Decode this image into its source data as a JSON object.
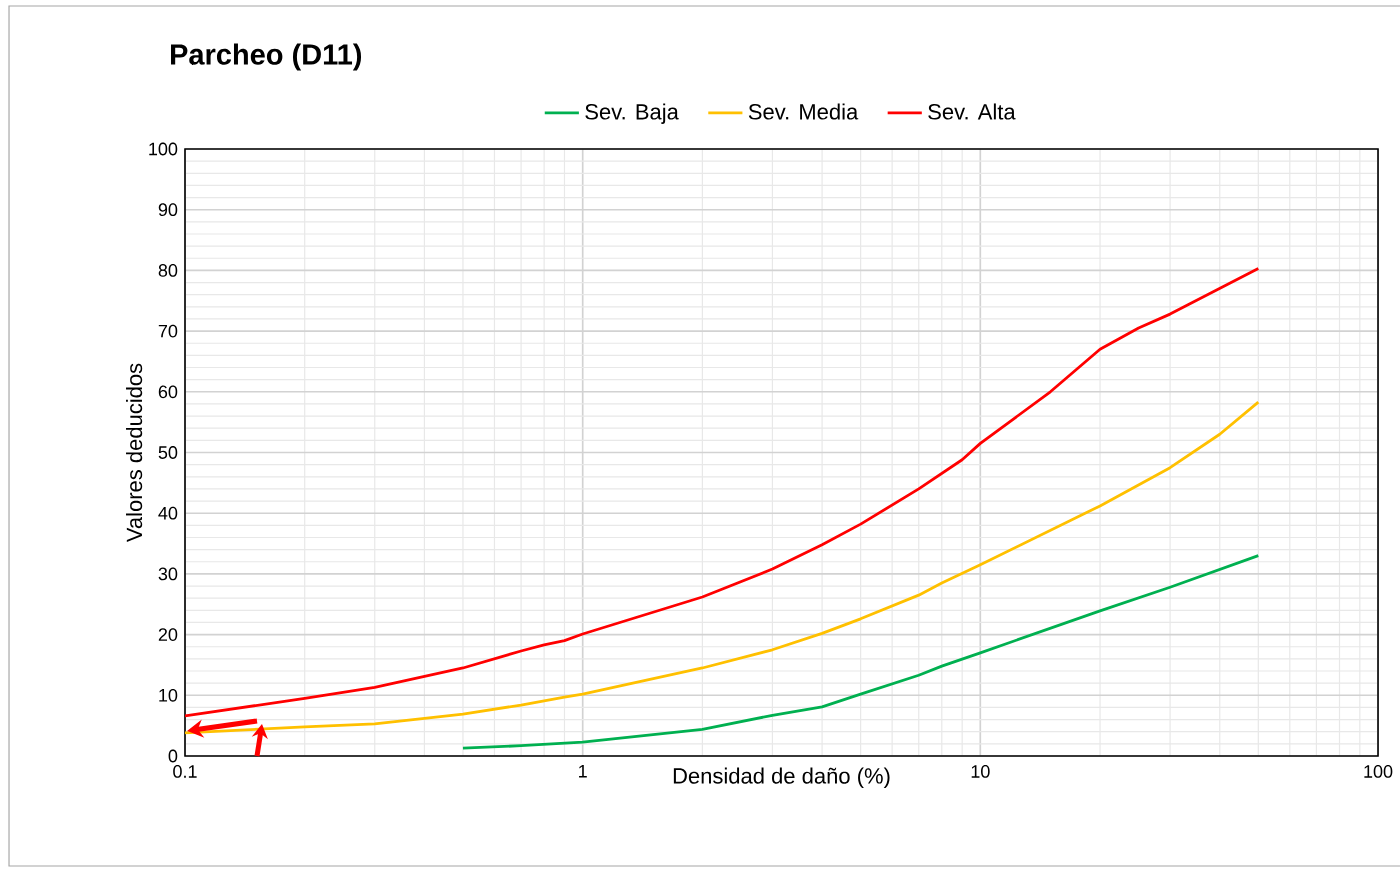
{
  "chart_data": {
    "type": "line",
    "title": "Parcheo (D11)",
    "xlabel": "Densidad de daño (%)",
    "ylabel": "Valores deducidos",
    "series": [
      {
        "name": "Sev. Baja",
        "color": "#00b050",
        "x": [
          0.5,
          0.7,
          1,
          2,
          3,
          4,
          5,
          7,
          8,
          10,
          20,
          30,
          50
        ],
        "values": [
          1.3,
          1.7,
          2.3,
          4.4,
          6.7,
          8.1,
          10.2,
          13.3,
          14.8,
          17,
          23.9,
          27.8,
          33
        ]
      },
      {
        "name": "Sev. Media",
        "color": "#ffc000",
        "x": [
          0.1,
          0.2,
          0.3,
          0.5,
          0.7,
          0.9,
          1,
          2,
          3,
          4,
          5,
          7,
          8,
          10,
          20,
          30,
          40,
          50
        ],
        "values": [
          3.8,
          4.8,
          5.3,
          6.9,
          8.4,
          9.7,
          10.2,
          14.5,
          17.5,
          20.2,
          22.6,
          26.5,
          28.5,
          31.5,
          41.2,
          47.5,
          53,
          58.3
        ]
      },
      {
        "name": "Sev. Alta",
        "color": "#ff0000",
        "x": [
          0.1,
          0.2,
          0.3,
          0.5,
          0.7,
          0.8,
          0.9,
          1,
          2,
          3,
          4,
          5,
          7,
          9,
          10,
          15,
          20,
          25,
          30,
          50
        ],
        "values": [
          6.6,
          9.5,
          11.3,
          14.5,
          17.3,
          18.3,
          19,
          20.1,
          26.2,
          30.8,
          34.8,
          38.2,
          44,
          48.8,
          51.5,
          60,
          67,
          70.5,
          72.8,
          80.3
        ]
      }
    ],
    "xlim": [
      0.1,
      100
    ],
    "ylim": [
      0,
      100
    ],
    "xticks": [
      0.1,
      1,
      10,
      100
    ],
    "yticks": [
      0,
      10,
      20,
      30,
      40,
      50,
      60,
      70,
      80,
      90,
      100
    ],
    "log": "x",
    "grid": true,
    "legend": "top"
  }
}
